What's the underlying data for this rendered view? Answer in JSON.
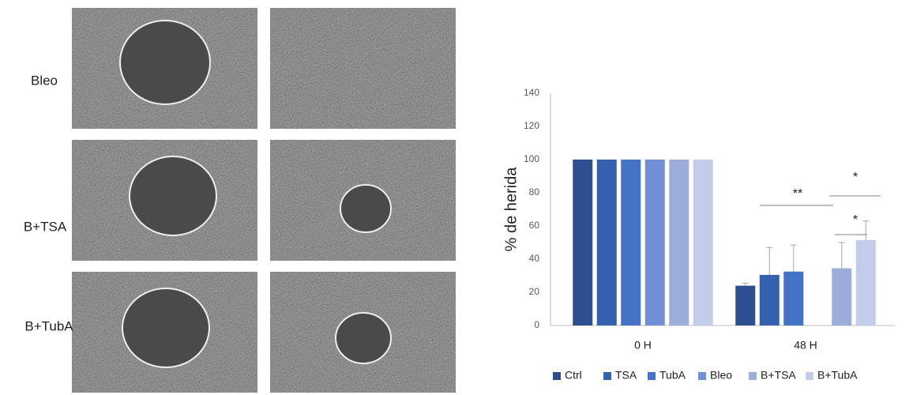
{
  "panels": {
    "row_labels": [
      "Bleo",
      "B+TSA",
      "B+TubA"
    ]
  },
  "chart_data": {
    "type": "bar",
    "y_label": "% de herida",
    "categories": [
      "0 H",
      "48 H"
    ],
    "series": [
      {
        "name": "Ctrl",
        "color": "#2e4f8f",
        "values": [
          100,
          24
        ],
        "errors": [
          null,
          1.5
        ]
      },
      {
        "name": "TSA",
        "color": "#3560ad",
        "values": [
          100,
          30.5
        ],
        "errors": [
          null,
          16.5
        ]
      },
      {
        "name": "TubA",
        "color": "#4472c4",
        "values": [
          100,
          32.5
        ],
        "errors": [
          null,
          16
        ]
      },
      {
        "name": "Bleo",
        "color": "#708fd4",
        "values": [
          100,
          null
        ],
        "errors": [
          null,
          null
        ]
      },
      {
        "name": "B+TSA",
        "color": "#9caddb",
        "values": [
          100,
          34.5
        ],
        "errors": [
          null,
          15.5
        ]
      },
      {
        "name": "B+TubA",
        "color": "#c3cce9",
        "values": [
          100,
          51.5
        ],
        "errors": [
          null,
          11.5
        ]
      }
    ],
    "annotations": [
      "**",
      "*",
      "*"
    ],
    "ylim": [
      0,
      140
    ],
    "yticks": [
      0,
      20,
      40,
      60,
      80,
      100,
      120,
      140
    ],
    "grid": false,
    "legend": "bottom"
  }
}
